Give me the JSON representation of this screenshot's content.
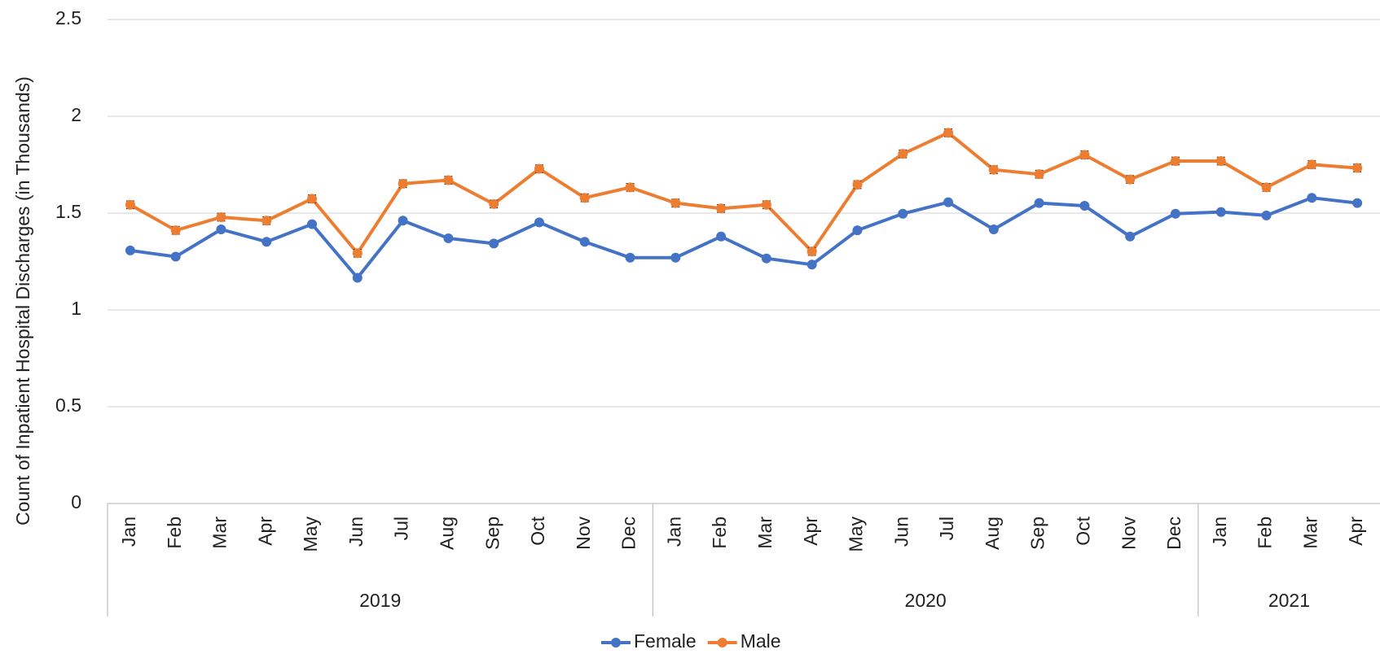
{
  "chart_data": {
    "type": "line",
    "y_label": "Count of Inpatient Hospital Discharges (in Thousands)",
    "year_groups": [
      {
        "year": "2019",
        "months": [
          "Jan",
          "Feb",
          "Mar",
          "Apr",
          "May",
          "Jun",
          "Jul",
          "Aug",
          "Sep",
          "Oct",
          "Nov",
          "Dec"
        ]
      },
      {
        "year": "2020",
        "months": [
          "Jan",
          "Feb",
          "Mar",
          "Apr",
          "May",
          "Jun",
          "Jul",
          "Aug",
          "Sep",
          "Oct",
          "Nov",
          "Dec"
        ]
      },
      {
        "year": "2021",
        "months": [
          "Jan",
          "Feb",
          "Mar",
          "Apr"
        ]
      }
    ],
    "series": [
      {
        "name": "Female",
        "color": "#4472c4",
        "values": [
          1.307,
          1.275,
          1.416,
          1.352,
          1.443,
          1.166,
          1.461,
          1.37,
          1.343,
          1.452,
          1.352,
          1.27,
          1.27,
          1.379,
          1.266,
          1.234,
          1.411,
          1.497,
          1.556,
          1.416,
          1.552,
          1.538,
          1.379,
          1.497,
          1.506,
          1.488,
          1.579,
          1.552
        ]
      },
      {
        "name": "Male",
        "color": "#ed7d31",
        "values": [
          1.543,
          1.411,
          1.479,
          1.461,
          1.574,
          1.293,
          1.652,
          1.67,
          1.547,
          1.729,
          1.579,
          1.633,
          1.552,
          1.524,
          1.543,
          1.302,
          1.647,
          1.806,
          1.915,
          1.724,
          1.701,
          1.801,
          1.674,
          1.769,
          1.769,
          1.633,
          1.751,
          1.733
        ],
        "errors": [
          0.02,
          0.02,
          0.02,
          0.02,
          0.02,
          0.02,
          0.02,
          0.02,
          0.02,
          0.02,
          0.02,
          0.02,
          0.02,
          0.02,
          0.02,
          0.02,
          0.02,
          0.02,
          0.02,
          0.02,
          0.02,
          0.02,
          0.02,
          0.02,
          0.02,
          0.02,
          0.02,
          0.02
        ]
      }
    ],
    "ylim": [
      0,
      2.5
    ],
    "yticks": [
      0,
      0.5,
      1,
      1.5,
      2,
      2.5
    ],
    "grid": true,
    "legend": "bottom"
  }
}
